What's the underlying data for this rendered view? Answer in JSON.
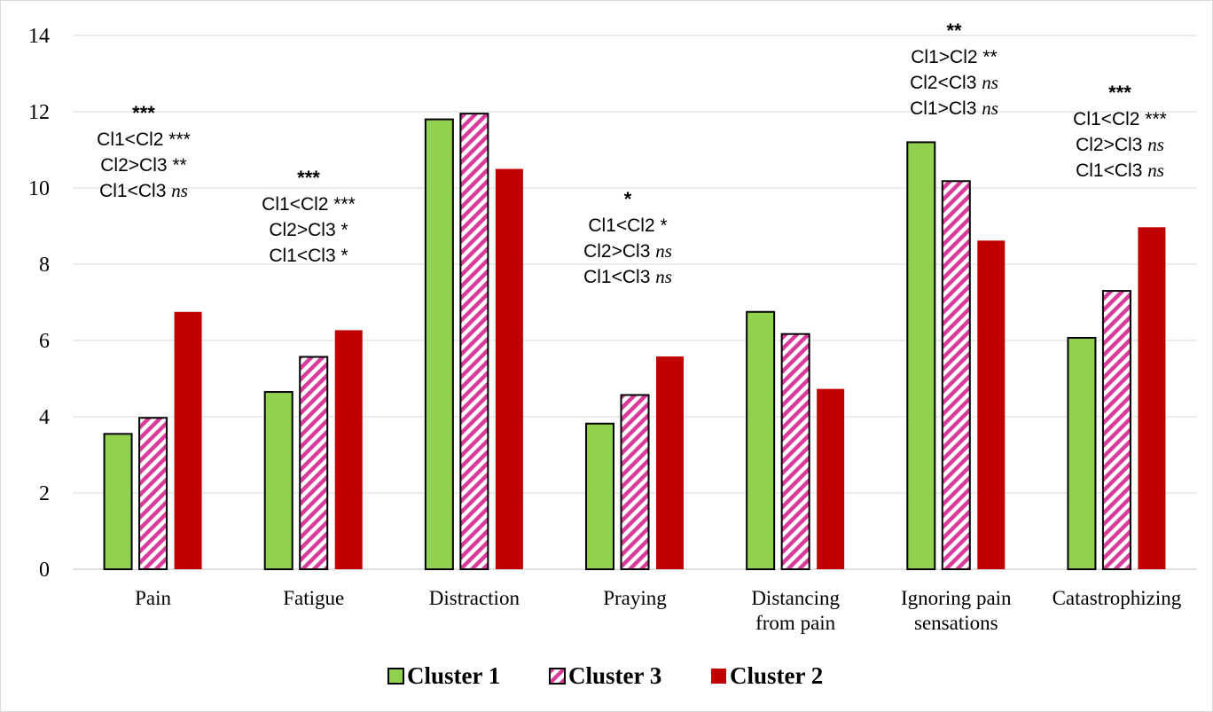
{
  "chart_data": {
    "type": "bar",
    "ylim": [
      0,
      14
    ],
    "yticks": [
      0,
      2,
      4,
      6,
      8,
      10,
      12,
      14
    ],
    "grid": true,
    "legend_position": "bottom",
    "categories": [
      [
        "Pain"
      ],
      [
        "Fatigue"
      ],
      [
        "Distraction"
      ],
      [
        "Praying"
      ],
      [
        "Distancing",
        "from pain"
      ],
      [
        "Ignoring pain",
        "sensations"
      ],
      [
        "Catastrophizing"
      ]
    ],
    "series": [
      {
        "name": "Cluster 1",
        "color": "#92d050",
        "pattern": "solid",
        "values": [
          3.55,
          4.65,
          11.8,
          3.82,
          6.75,
          11.2,
          6.07
        ]
      },
      {
        "name": "Cluster 3",
        "color": "#d83b9a",
        "pattern": "diagonal-stripes",
        "values": [
          3.97,
          5.57,
          11.95,
          4.57,
          6.17,
          10.18,
          7.3
        ]
      },
      {
        "name": "Cluster 2",
        "color": "#c00000",
        "pattern": "solid",
        "values": [
          6.75,
          6.27,
          10.5,
          5.58,
          4.73,
          8.62,
          8.97
        ]
      }
    ],
    "annotations": [
      {
        "category": "Pain",
        "overall": "***",
        "lines": [
          [
            "Cl1<Cl2 ",
            "***"
          ],
          [
            "Cl2>Cl3 ",
            "**"
          ],
          [
            "Cl1<Cl3 ",
            "ns"
          ]
        ]
      },
      {
        "category": "Fatigue",
        "overall": "***",
        "lines": [
          [
            "Cl1<Cl2 ",
            "***"
          ],
          [
            "Cl2>Cl3 ",
            "*"
          ],
          [
            "Cl1<Cl3 ",
            "*"
          ]
        ]
      },
      {
        "category": "Praying",
        "overall": "*",
        "lines": [
          [
            "Cl1<Cl2 ",
            "*"
          ],
          [
            "Cl2>Cl3 ",
            "ns"
          ],
          [
            "Cl1<Cl3 ",
            "ns"
          ]
        ]
      },
      {
        "category": "Ignoring pain sensations",
        "overall": "**",
        "lines": [
          [
            "Cl1>Cl2 ",
            "**"
          ],
          [
            "Cl2<Cl3 ",
            "ns"
          ],
          [
            "Cl1>Cl3 ",
            "ns"
          ]
        ]
      },
      {
        "category": "Catastrophizing",
        "overall": "***",
        "lines": [
          [
            "Cl1<Cl2 ",
            "***"
          ],
          [
            "Cl2>Cl3 ",
            "ns"
          ],
          [
            "Cl1<Cl3 ",
            "ns"
          ]
        ]
      }
    ]
  }
}
